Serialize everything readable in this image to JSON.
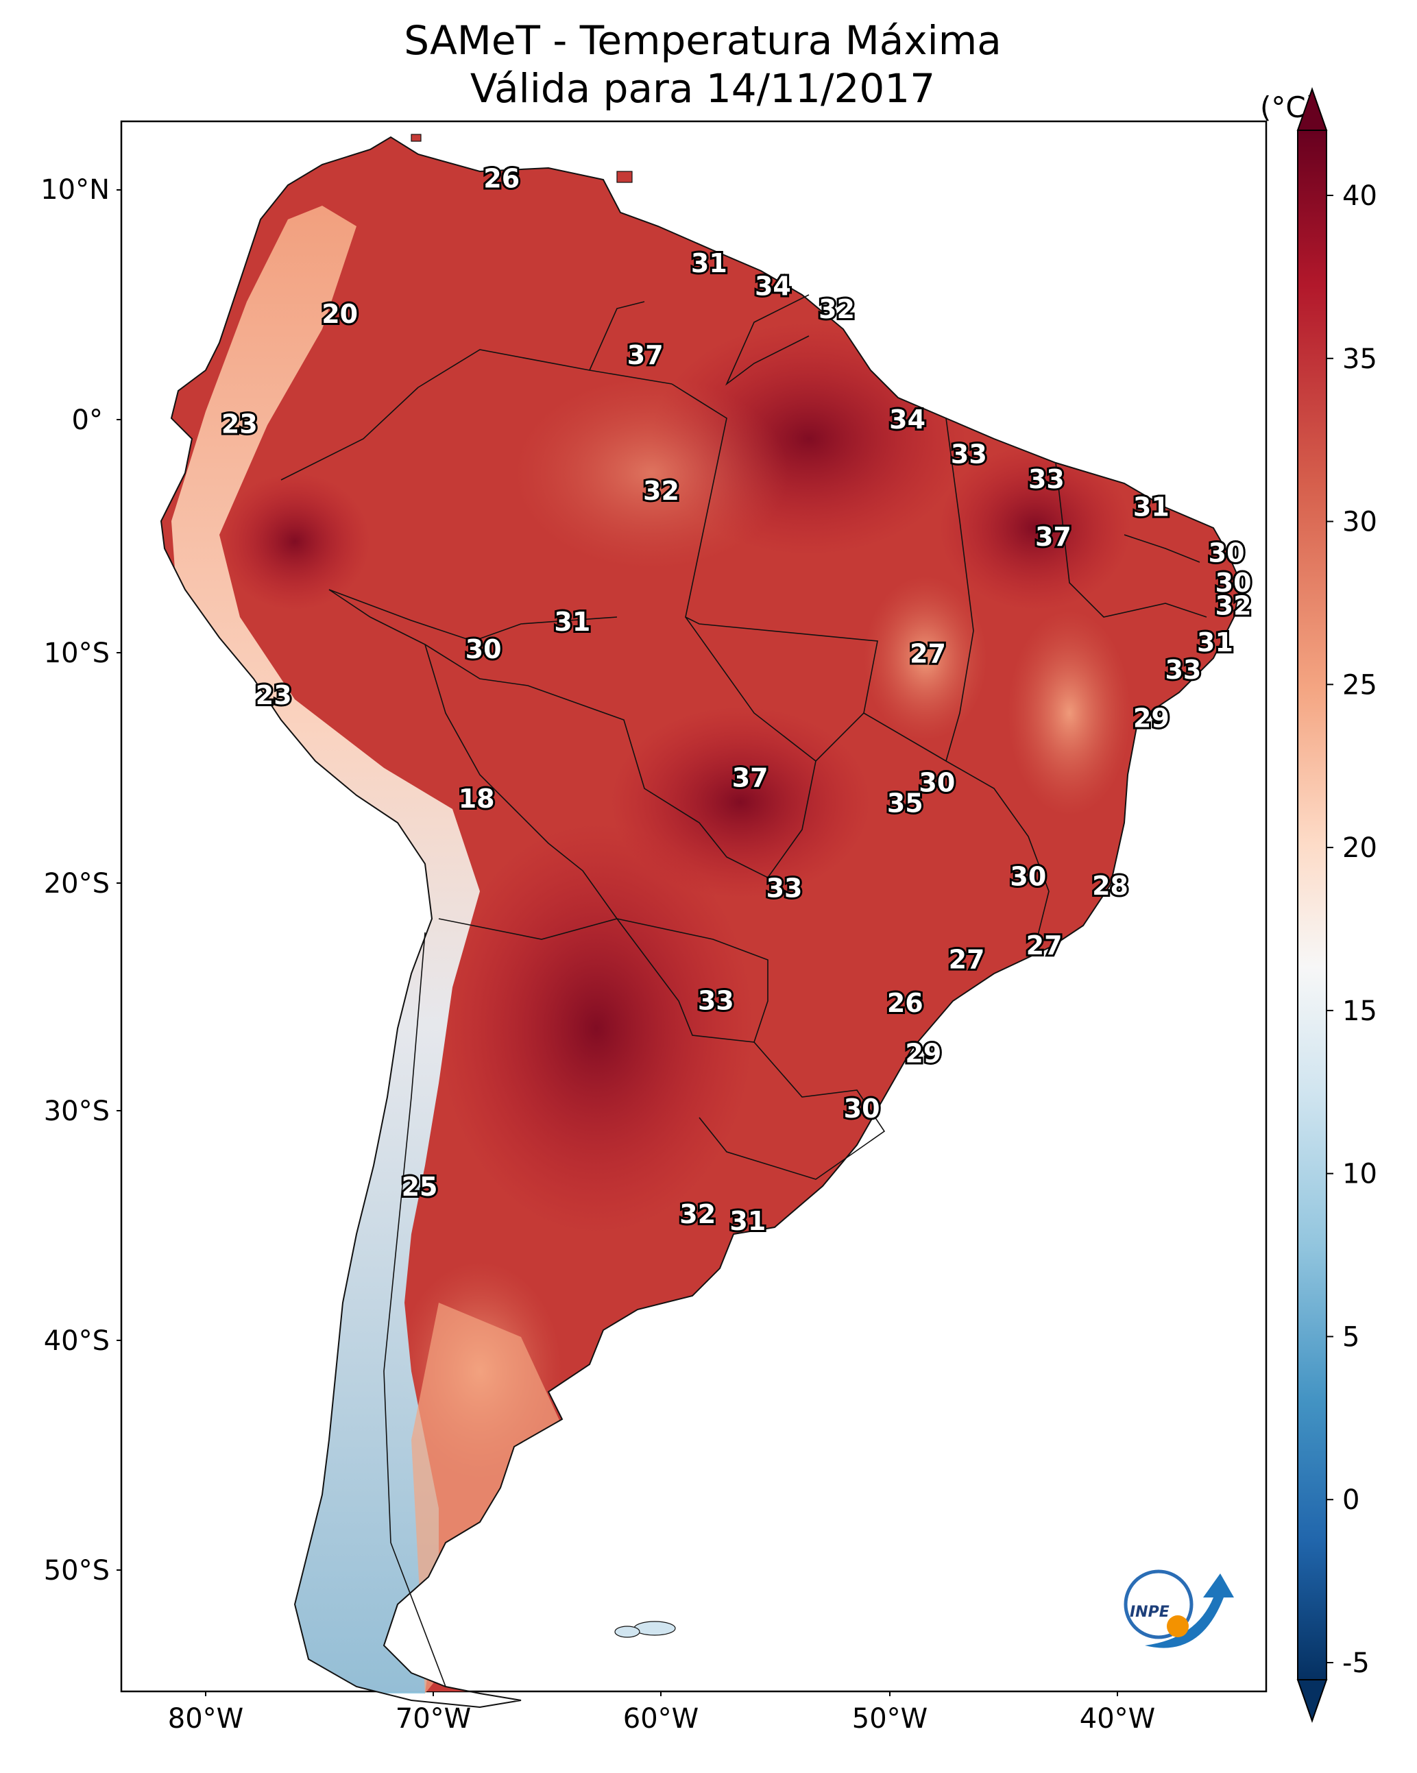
{
  "title": {
    "line1": "SAMeT - Temperatura Máxima",
    "line2": "Válida para 14/11/2017"
  },
  "colorbar": {
    "unit": "(°C)",
    "ticks": [
      "40",
      "35",
      "30",
      "25",
      "20",
      "15",
      "10",
      "5",
      "0",
      "-5"
    ],
    "values": [
      40,
      35,
      30,
      25,
      20,
      15,
      10,
      5,
      0,
      -5
    ],
    "colors": [
      "#67001f",
      "#b2182b",
      "#d6604d",
      "#f4a582",
      "#fddbc7",
      "#f7f7f7",
      "#d1e5f0",
      "#92c5de",
      "#4393c3",
      "#2166ac",
      "#053061"
    ]
  },
  "axes": {
    "lat_labels": [
      "10°N",
      "0°",
      "10°S",
      "20°S",
      "30°S",
      "40°S",
      "50°S"
    ],
    "lon_labels": [
      "80°W",
      "70°W",
      "60°W",
      "50°W",
      "40°W"
    ]
  },
  "stations": [
    {
      "label": "26",
      "lon": -67.0,
      "lat": 10.5
    },
    {
      "label": "31",
      "lon": -57.9,
      "lat": 6.8
    },
    {
      "label": "34",
      "lon": -55.1,
      "lat": 5.8
    },
    {
      "label": "32",
      "lon": -52.3,
      "lat": 4.8
    },
    {
      "label": "20",
      "lon": -74.1,
      "lat": 4.6
    },
    {
      "label": "37",
      "lon": -60.7,
      "lat": 2.8
    },
    {
      "label": "23",
      "lon": -78.5,
      "lat": -0.2
    },
    {
      "label": "34",
      "lon": -49.2,
      "lat": 0.0
    },
    {
      "label": "33",
      "lon": -46.5,
      "lat": -1.5
    },
    {
      "label": "32",
      "lon": -60.0,
      "lat": -3.1
    },
    {
      "label": "33",
      "lon": -43.1,
      "lat": -2.6
    },
    {
      "label": "31",
      "lon": -38.5,
      "lat": -3.8
    },
    {
      "label": "37",
      "lon": -42.8,
      "lat": -5.1
    },
    {
      "label": "30",
      "lon": -35.2,
      "lat": -5.8
    },
    {
      "label": "30",
      "lon": -34.9,
      "lat": -7.1
    },
    {
      "label": "32",
      "lon": -34.9,
      "lat": -8.1
    },
    {
      "label": "31",
      "lon": -35.7,
      "lat": -9.7
    },
    {
      "label": "33",
      "lon": -37.1,
      "lat": -10.9
    },
    {
      "label": "31",
      "lon": -63.9,
      "lat": -8.8
    },
    {
      "label": "30",
      "lon": -67.8,
      "lat": -10.0
    },
    {
      "label": "27",
      "lon": -48.3,
      "lat": -10.2
    },
    {
      "label": "23",
      "lon": -77.0,
      "lat": -12.0
    },
    {
      "label": "29",
      "lon": -38.5,
      "lat": -13.0
    },
    {
      "label": "37",
      "lon": -56.1,
      "lat": -15.6
    },
    {
      "label": "30",
      "lon": -47.9,
      "lat": -15.8
    },
    {
      "label": "35",
      "lon": -49.3,
      "lat": -16.7
    },
    {
      "label": "18",
      "lon": -68.1,
      "lat": -16.5
    },
    {
      "label": "30",
      "lon": -43.9,
      "lat": -19.9
    },
    {
      "label": "28",
      "lon": -40.3,
      "lat": -20.3
    },
    {
      "label": "33",
      "lon": -54.6,
      "lat": -20.4
    },
    {
      "label": "27",
      "lon": -43.2,
      "lat": -22.9
    },
    {
      "label": "27",
      "lon": -46.6,
      "lat": -23.5
    },
    {
      "label": "33",
      "lon": -57.6,
      "lat": -25.3
    },
    {
      "label": "26",
      "lon": -49.3,
      "lat": -25.4
    },
    {
      "label": "29",
      "lon": -48.5,
      "lat": -27.6
    },
    {
      "label": "30",
      "lon": -51.2,
      "lat": -30.0
    },
    {
      "label": "25",
      "lon": -70.6,
      "lat": -33.4
    },
    {
      "label": "32",
      "lon": -58.4,
      "lat": -34.6
    },
    {
      "label": "31",
      "lon": -56.2,
      "lat": -34.9
    }
  ],
  "logo": {
    "text": "INPE"
  }
}
